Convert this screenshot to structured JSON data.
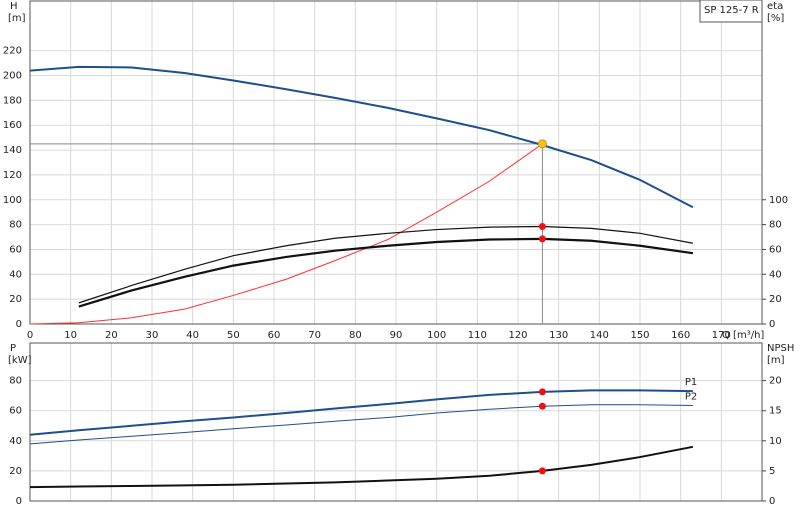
{
  "chart_data": [
    {
      "type": "line",
      "title": "SP 125-7 R",
      "ylabel": "H",
      "yunit": "[m]",
      "y2label": "eta",
      "y2unit": "[%]",
      "xlabel": "Q [m³/h]",
      "xlim": [
        0,
        180
      ],
      "xticks": [
        0,
        10,
        20,
        30,
        40,
        50,
        60,
        70,
        80,
        90,
        100,
        110,
        120,
        130,
        140,
        150,
        160,
        170
      ],
      "xtick_labels": true,
      "ylim": [
        0,
        260
      ],
      "yticks": [
        0,
        20,
        40,
        60,
        80,
        100,
        120,
        140,
        160,
        180,
        200,
        220
      ],
      "y2lim": [
        0,
        260
      ],
      "y2ticks": [
        0,
        20,
        40,
        60,
        80,
        100
      ],
      "grid": true,
      "grid_color": "#d8d8d8",
      "operating_point": {
        "x": 126,
        "y": 145,
        "color": "#f5c518",
        "line_color": "#888888"
      },
      "series": [
        {
          "color": "#1f4e8c",
          "width": 2,
          "x": [
            0,
            12,
            25,
            38,
            50,
            63,
            75,
            88,
            100,
            113,
            125,
            138,
            150,
            163
          ],
          "values": [
            204,
            207,
            206.5,
            202,
            196,
            189,
            182,
            174,
            165.5,
            156,
            145,
            132,
            116,
            94
          ]
        },
        {
          "color": "#ff3030",
          "width": 1,
          "x": [
            0,
            12,
            25,
            38,
            50,
            63,
            75,
            88,
            100,
            113,
            126
          ],
          "values": [
            0,
            1,
            5,
            12,
            23,
            36,
            51,
            68,
            90,
            115,
            145
          ]
        },
        {
          "color": "#111111",
          "width": 1.2,
          "axis": "y2",
          "x": [
            12,
            25,
            38,
            50,
            63,
            75,
            88,
            100,
            113,
            126,
            138,
            150,
            163
          ],
          "values": [
            17,
            31,
            44,
            55,
            63,
            69,
            73,
            76,
            78,
            78.5,
            77,
            73,
            65
          ],
          "point": {
            "x": 126,
            "y": 78.5,
            "color": "#ee1111"
          }
        },
        {
          "color": "#111111",
          "width": 2.2,
          "axis": "y2",
          "x": [
            12,
            25,
            38,
            50,
            63,
            75,
            88,
            100,
            113,
            126,
            138,
            150,
            163
          ],
          "values": [
            14,
            27,
            38,
            47,
            54,
            59,
            63,
            66,
            68,
            68.5,
            67,
            63,
            57
          ],
          "point": {
            "x": 126,
            "y": 68.5,
            "color": "#ee1111"
          }
        }
      ]
    },
    {
      "type": "line",
      "ylabel": "P",
      "yunit": "[kW]",
      "y2label": "NPSH",
      "y2unit": "[m]",
      "xlim": [
        0,
        180
      ],
      "xticks": [
        0,
        10,
        20,
        30,
        40,
        50,
        60,
        70,
        80,
        90,
        100,
        110,
        120,
        130,
        140,
        150,
        160,
        170
      ],
      "xtick_labels": false,
      "ylim": [
        0,
        105
      ],
      "yticks": [
        0,
        20,
        40,
        60,
        80
      ],
      "y2lim": [
        0,
        26.25
      ],
      "y2ticks": [
        0,
        5,
        10,
        15,
        20
      ],
      "grid": true,
      "grid_color": "#d8d8d8",
      "series": [
        {
          "name": "P1",
          "color": "#1f4e8c",
          "width": 2,
          "x": [
            0,
            12,
            25,
            38,
            50,
            63,
            75,
            88,
            100,
            113,
            126,
            138,
            150,
            163
          ],
          "values": [
            44,
            47,
            50,
            53,
            55.5,
            58.5,
            61.5,
            64.5,
            67.5,
            70.5,
            72.5,
            73.5,
            73.5,
            73
          ],
          "point": {
            "x": 126,
            "y": 72.5,
            "color": "#ee1111"
          }
        },
        {
          "name": "P2",
          "color": "#1f4e8c",
          "width": 1,
          "x": [
            0,
            12,
            25,
            38,
            50,
            63,
            75,
            88,
            100,
            113,
            126,
            138,
            150,
            163
          ],
          "values": [
            38,
            40.5,
            43,
            45.5,
            48,
            50.5,
            53,
            55.5,
            58.5,
            61,
            63,
            64,
            64,
            63.5
          ],
          "point": {
            "x": 126,
            "y": 63,
            "color": "#ee1111"
          }
        },
        {
          "color": "#111111",
          "width": 2,
          "axis": "y2",
          "x": [
            0,
            12,
            25,
            38,
            50,
            63,
            75,
            88,
            100,
            113,
            126,
            138,
            150,
            163
          ],
          "values": [
            2.3,
            2.4,
            2.5,
            2.6,
            2.7,
            2.9,
            3.1,
            3.4,
            3.7,
            4.2,
            5,
            6,
            7.3,
            9
          ],
          "point": {
            "x": 126,
            "y": 5,
            "color": "#ee1111"
          }
        }
      ]
    }
  ]
}
